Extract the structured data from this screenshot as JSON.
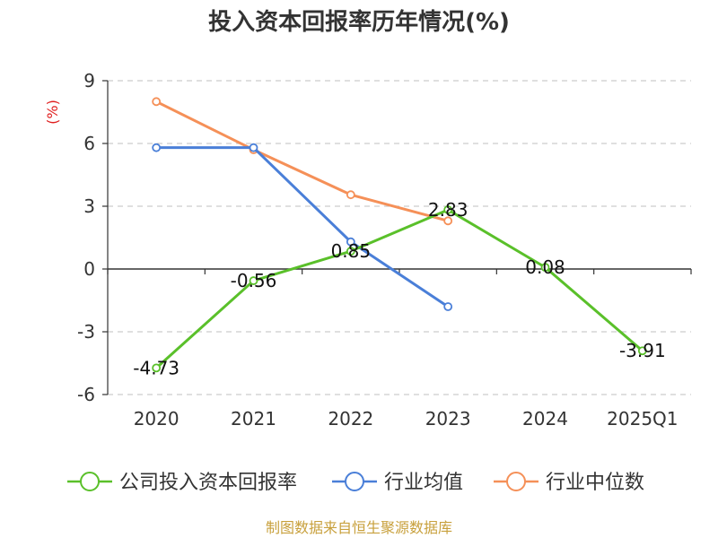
{
  "title": "投入资本回报率历年情况(%)",
  "unit_label": "(%)",
  "source": "制图数据来自恒生聚源数据库",
  "chart_data": {
    "type": "line",
    "title": "投入资本回报率历年情况(%)",
    "ylabel": "(%)",
    "xlabel": "",
    "categories": [
      "2020",
      "2021",
      "2022",
      "2023",
      "2024",
      "2025Q1"
    ],
    "ylim": [
      -6,
      9
    ],
    "yticks": [
      9,
      6,
      3,
      0,
      -3,
      -6
    ],
    "ytick_labels": [
      "9",
      "6",
      "3",
      "0",
      "-3",
      "-6"
    ],
    "grid": true,
    "legend_position": "bottom",
    "series": [
      {
        "name": "公司投入资本回报率",
        "color": "#5ac02a",
        "values": [
          -4.73,
          -0.56,
          0.85,
          2.83,
          0.08,
          -3.91
        ],
        "labels": [
          "-4.73",
          "-0.56",
          "0.85",
          "2.83",
          "0.08",
          "-3.91"
        ]
      },
      {
        "name": "行业均值",
        "color": "#4a7fd8",
        "values": [
          5.8,
          5.8,
          1.3,
          -1.8,
          null,
          null
        ]
      },
      {
        "name": "行业中位数",
        "color": "#f59058",
        "values": [
          8.0,
          5.7,
          3.55,
          2.3,
          null,
          null
        ]
      }
    ]
  }
}
